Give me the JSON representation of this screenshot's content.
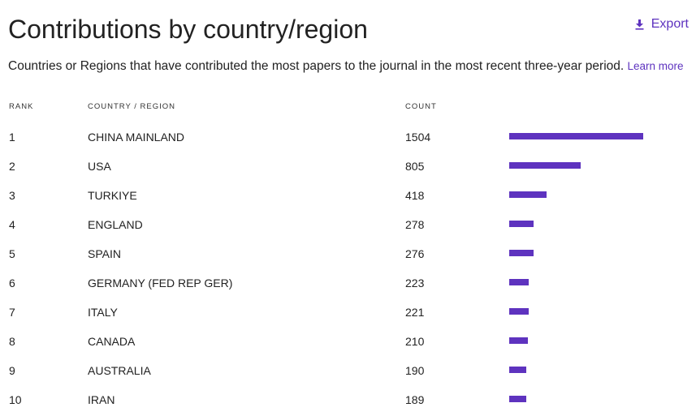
{
  "header": {
    "title": "Contributions by country/region",
    "export_label": "Export",
    "subtitle": "Countries or Regions that have contributed the most papers to the journal in the most recent three-year period.",
    "learn_more": "Learn more"
  },
  "table": {
    "columns": {
      "rank": "RANK",
      "country": "COUNTRY / REGION",
      "count": "COUNT"
    },
    "bar_max": 1504,
    "rows": [
      {
        "rank": "1",
        "country": "CHINA MAINLAND",
        "count": "1504",
        "value": 1504
      },
      {
        "rank": "2",
        "country": "USA",
        "count": "805",
        "value": 805
      },
      {
        "rank": "3",
        "country": "TURKIYE",
        "count": "418",
        "value": 418
      },
      {
        "rank": "4",
        "country": "ENGLAND",
        "count": "278",
        "value": 278
      },
      {
        "rank": "5",
        "country": "SPAIN",
        "count": "276",
        "value": 276
      },
      {
        "rank": "6",
        "country": "GERMANY (FED REP GER)",
        "count": "223",
        "value": 223
      },
      {
        "rank": "7",
        "country": "ITALY",
        "count": "221",
        "value": 221
      },
      {
        "rank": "8",
        "country": "CANADA",
        "count": "210",
        "value": 210
      },
      {
        "rank": "9",
        "country": "AUSTRALIA",
        "count": "190",
        "value": 190
      },
      {
        "rank": "10",
        "country": "IRAN",
        "count": "189",
        "value": 189
      }
    ]
  },
  "colors": {
    "accent": "#5e33bf",
    "text": "#222222"
  },
  "icons": {
    "export": "download-icon"
  }
}
